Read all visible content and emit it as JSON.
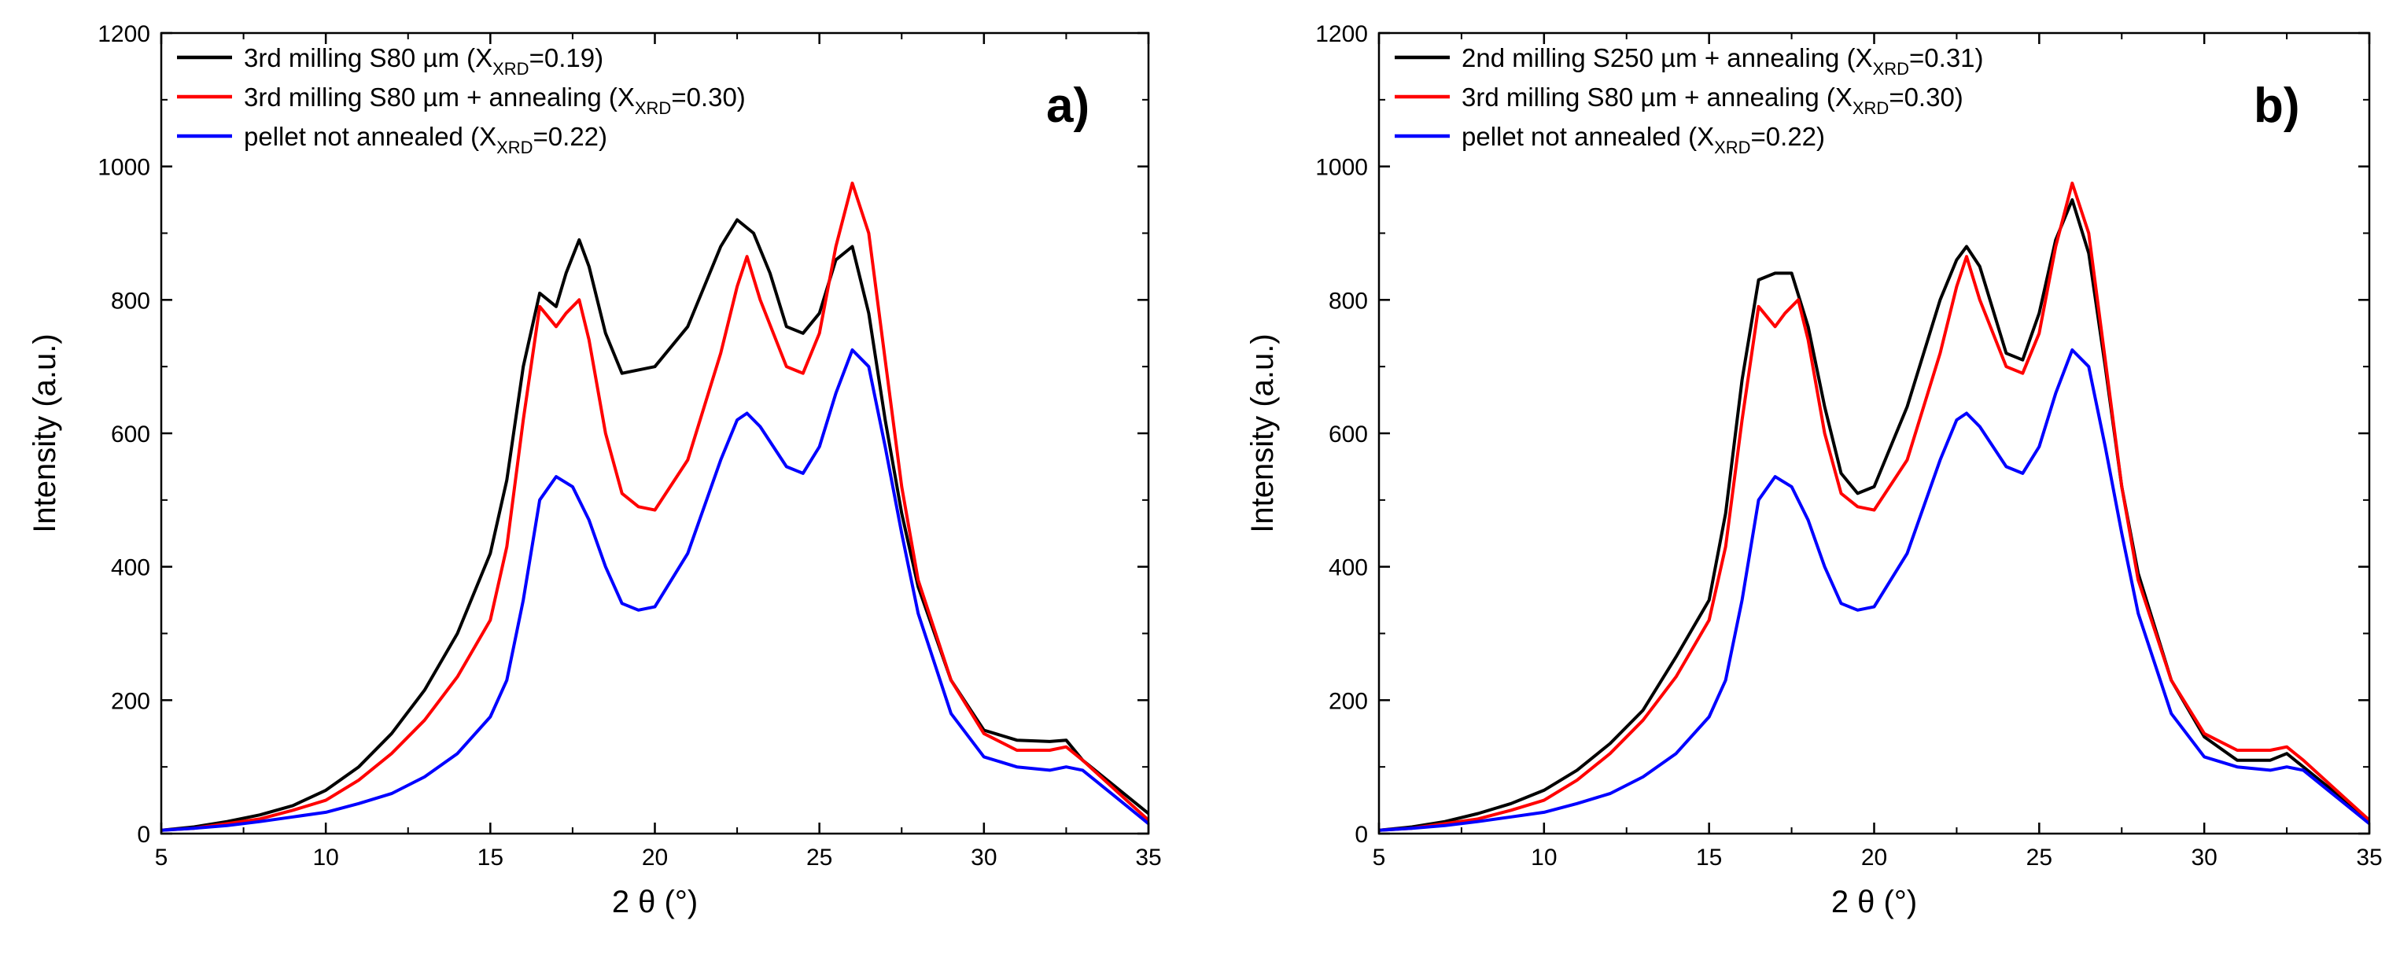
{
  "chart_data": [
    {
      "type": "line",
      "panel_label": "a)",
      "xlabel": "2 θ (°)",
      "ylabel": "Intensity (a.u.)",
      "xlim": [
        5,
        35
      ],
      "ylim": [
        0,
        1200
      ],
      "xticks": [
        5,
        10,
        15,
        20,
        25,
        30,
        35
      ],
      "yticks": [
        0,
        200,
        400,
        600,
        800,
        1000,
        1200
      ],
      "legend_position": "top-left",
      "series": [
        {
          "name": "3rd milling S80 µm  (X",
          "name_sub": "XRD",
          "name_tail": "=0.19)",
          "color": "#000000",
          "x": [
            5,
            6,
            7,
            8,
            9,
            10,
            11,
            12,
            13,
            14,
            15,
            15.5,
            16,
            16.5,
            17,
            17.3,
            17.7,
            18,
            18.5,
            19,
            20,
            21,
            22,
            22.5,
            23,
            23.5,
            24,
            24.5,
            25,
            25.5,
            26,
            26.5,
            27,
            27.5,
            28,
            29,
            30,
            31,
            32,
            32.5,
            33,
            34,
            35
          ],
          "y": [
            5,
            10,
            18,
            28,
            42,
            65,
            100,
            150,
            215,
            300,
            420,
            530,
            700,
            810,
            790,
            840,
            890,
            850,
            750,
            690,
            700,
            760,
            880,
            920,
            900,
            840,
            760,
            750,
            780,
            860,
            880,
            780,
            620,
            480,
            370,
            230,
            155,
            140,
            138,
            140,
            110,
            70,
            30
          ]
        },
        {
          "name": "3rd milling S80 µm + annealing (X",
          "name_sub": "XRD",
          "name_tail": "=0.30)",
          "color": "#ff0000",
          "x": [
            5,
            6,
            7,
            8,
            9,
            10,
            11,
            12,
            13,
            14,
            15,
            15.5,
            16,
            16.5,
            17,
            17.3,
            17.7,
            18,
            18.5,
            19,
            19.5,
            20,
            21,
            22,
            22.5,
            22.8,
            23.2,
            24,
            24.5,
            25,
            25.5,
            26,
            26.5,
            27,
            27.5,
            28,
            29,
            30,
            31,
            32,
            32.5,
            33,
            34,
            35
          ],
          "y": [
            5,
            8,
            15,
            22,
            35,
            50,
            80,
            120,
            170,
            235,
            320,
            430,
            620,
            790,
            760,
            780,
            800,
            740,
            600,
            510,
            490,
            485,
            560,
            720,
            820,
            865,
            800,
            700,
            690,
            750,
            880,
            975,
            900,
            710,
            520,
            380,
            230,
            150,
            125,
            125,
            130,
            110,
            65,
            20
          ]
        },
        {
          "name": "pellet not annealed (X",
          "name_sub": "XRD",
          "name_tail": "=0.22)",
          "color": "#0000ff",
          "x": [
            5,
            6,
            7,
            8,
            9,
            10,
            11,
            12,
            13,
            14,
            15,
            15.5,
            16,
            16.5,
            17,
            17.5,
            18,
            18.5,
            19,
            19.5,
            20,
            21,
            22,
            22.5,
            22.8,
            23.2,
            24,
            24.5,
            25,
            25.5,
            26,
            26.5,
            27,
            27.5,
            28,
            29,
            30,
            31,
            32,
            32.5,
            33,
            34,
            35
          ],
          "y": [
            5,
            8,
            12,
            18,
            25,
            32,
            45,
            60,
            85,
            120,
            175,
            230,
            350,
            500,
            535,
            520,
            470,
            400,
            345,
            335,
            340,
            420,
            560,
            620,
            630,
            610,
            550,
            540,
            580,
            660,
            725,
            700,
            580,
            450,
            330,
            180,
            115,
            100,
            95,
            100,
            95,
            55,
            15
          ]
        }
      ]
    },
    {
      "type": "line",
      "panel_label": "b)",
      "xlabel": "2 θ (°)",
      "ylabel": "Intensity (a.u.)",
      "xlim": [
        5,
        35
      ],
      "ylim": [
        0,
        1200
      ],
      "xticks": [
        5,
        10,
        15,
        20,
        25,
        30,
        35
      ],
      "yticks": [
        0,
        200,
        400,
        600,
        800,
        1000,
        1200
      ],
      "legend_position": "top-left",
      "series": [
        {
          "name": "2nd milling S250 µm + annealing (X",
          "name_sub": "XRD",
          "name_tail": "=0.31)",
          "color": "#000000",
          "x": [
            5,
            6,
            7,
            8,
            9,
            10,
            11,
            12,
            13,
            14,
            15,
            15.5,
            16,
            16.5,
            17,
            17.5,
            18,
            18.5,
            19,
            19.5,
            20,
            21,
            22,
            22.5,
            22.8,
            23.2,
            24,
            24.5,
            25,
            25.5,
            26,
            26.5,
            27,
            27.5,
            28,
            29,
            30,
            31,
            32,
            32.5,
            33,
            34,
            35
          ],
          "y": [
            5,
            10,
            18,
            30,
            45,
            65,
            95,
            135,
            185,
            265,
            350,
            480,
            680,
            830,
            840,
            840,
            760,
            640,
            540,
            510,
            520,
            640,
            800,
            860,
            880,
            850,
            720,
            710,
            780,
            890,
            950,
            870,
            700,
            520,
            390,
            230,
            145,
            110,
            110,
            120,
            100,
            60,
            20
          ]
        },
        {
          "name": "3rd milling S80 µm + annealing (X",
          "name_sub": "XRD",
          "name_tail": "=0.30)",
          "color": "#ff0000",
          "x": [
            5,
            6,
            7,
            8,
            9,
            10,
            11,
            12,
            13,
            14,
            15,
            15.5,
            16,
            16.5,
            17,
            17.3,
            17.7,
            18,
            18.5,
            19,
            19.5,
            20,
            21,
            22,
            22.5,
            22.8,
            23.2,
            24,
            24.5,
            25,
            25.5,
            26,
            26.5,
            27,
            27.5,
            28,
            29,
            30,
            31,
            32,
            32.5,
            33,
            34,
            35
          ],
          "y": [
            5,
            8,
            15,
            22,
            35,
            50,
            80,
            120,
            170,
            235,
            320,
            430,
            620,
            790,
            760,
            780,
            800,
            740,
            600,
            510,
            490,
            485,
            560,
            720,
            820,
            865,
            800,
            700,
            690,
            750,
            880,
            975,
            900,
            710,
            520,
            380,
            230,
            150,
            125,
            125,
            130,
            110,
            65,
            20
          ]
        },
        {
          "name": "pellet not annealed (X",
          "name_sub": "XRD",
          "name_tail": "=0.22)",
          "color": "#0000ff",
          "x": [
            5,
            6,
            7,
            8,
            9,
            10,
            11,
            12,
            13,
            14,
            15,
            15.5,
            16,
            16.5,
            17,
            17.5,
            18,
            18.5,
            19,
            19.5,
            20,
            21,
            22,
            22.5,
            22.8,
            23.2,
            24,
            24.5,
            25,
            25.5,
            26,
            26.5,
            27,
            27.5,
            28,
            29,
            30,
            31,
            32,
            32.5,
            33,
            34,
            35
          ],
          "y": [
            5,
            8,
            12,
            18,
            25,
            32,
            45,
            60,
            85,
            120,
            175,
            230,
            350,
            500,
            535,
            520,
            470,
            400,
            345,
            335,
            340,
            420,
            560,
            620,
            630,
            610,
            550,
            540,
            580,
            660,
            725,
            700,
            580,
            450,
            330,
            180,
            115,
            100,
            95,
            100,
            95,
            55,
            15
          ]
        }
      ]
    }
  ]
}
